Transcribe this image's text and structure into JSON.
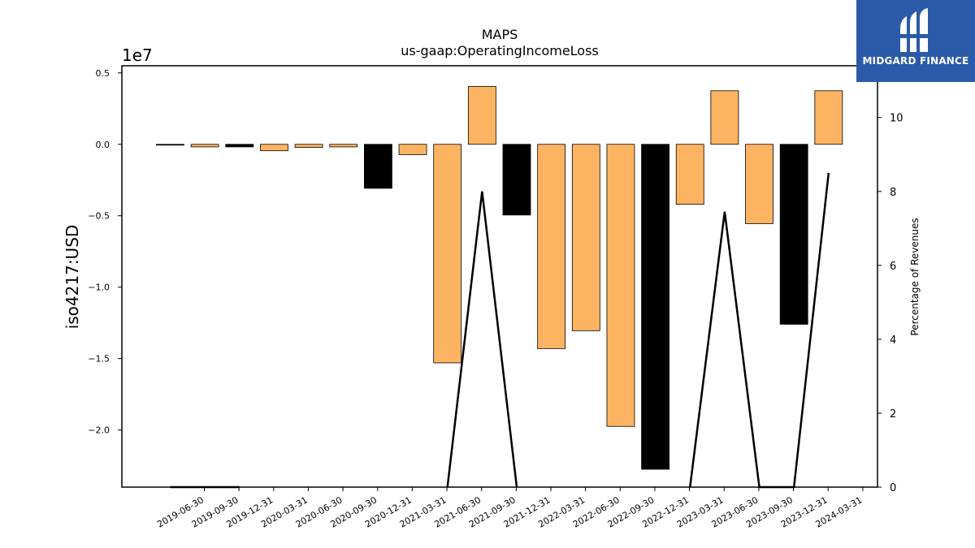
{
  "header": {
    "title": "MAPS",
    "subtitle": "us-gaap:OperatingIncomeLoss",
    "y_offset_label": "1e7"
  },
  "logo": {
    "text": "MIDGARD FINANCE",
    "mark": "stylized-m-icon",
    "color": "#2b5aa8"
  },
  "colors": {
    "bar_orange": "#fdb462",
    "bar_black": "#000000",
    "line": "#000000"
  },
  "chart_data": {
    "type": "bar",
    "categories": [
      "2019-06-30",
      "2019-09-30",
      "2019-12-31",
      "2020-03-31",
      "2020-06-30",
      "2020-09-30",
      "2020-12-31",
      "2021-03-31",
      "2021-06-30",
      "2021-09-30",
      "2021-12-31",
      "2022-03-31",
      "2022-06-30",
      "2022-09-30",
      "2022-12-31",
      "2023-03-31",
      "2023-06-30",
      "2023-09-30",
      "2023-12-31",
      "2024-03-31"
    ],
    "series": [
      {
        "values": [
          -30000,
          -180000,
          -180000,
          -450000,
          -220000,
          -180000,
          -3080000,
          -720000,
          -15300000,
          4050000,
          -4950000,
          -14300000,
          -13050000,
          -19750000,
          -22750000,
          -4200000,
          3750000,
          -5550000,
          -12600000,
          3750000
        ],
        "colors": [
          "black",
          "orange",
          "black",
          "orange",
          "orange",
          "orange",
          "black",
          "orange",
          "orange",
          "orange",
          "black",
          "orange",
          "orange",
          "orange",
          "black",
          "orange",
          "orange",
          "orange",
          "black",
          "orange"
        ]
      },
      {
        "axis": "right",
        "type": "line",
        "values": [
          0,
          0,
          0,
          null,
          null,
          null,
          null,
          null,
          0,
          8.0,
          0,
          null,
          null,
          null,
          null,
          0,
          7.45,
          0,
          0,
          8.5
        ]
      }
    ],
    "ylabel": "iso4217:USD",
    "y2label": "Percentage of Revenues",
    "ylim": [
      -24000000,
      5500000
    ],
    "y2lim": [
      0,
      11.4
    ],
    "yticks": [
      5000000,
      0,
      -5000000,
      -10000000,
      -15000000,
      -20000000
    ],
    "ytick_labels": [
      "0.5",
      "0.0",
      "−0.5",
      "−1.0",
      "−1.5",
      "−2.0"
    ],
    "y2ticks": [
      0,
      2,
      4,
      6,
      8,
      10
    ],
    "y2tick_labels": [
      "0",
      "2",
      "4",
      "6",
      "8",
      "10"
    ],
    "grid": false,
    "legend": "none"
  }
}
